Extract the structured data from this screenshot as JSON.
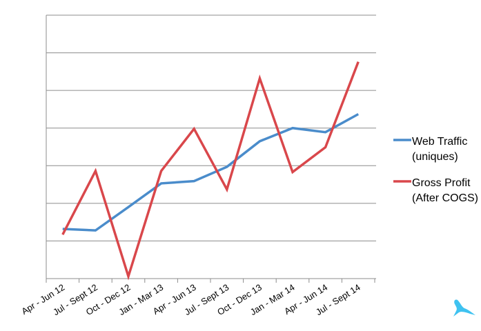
{
  "chart_data": {
    "type": "line",
    "title": "",
    "xlabel": "",
    "ylabel": "",
    "ylim": [
      0,
      7
    ],
    "grid": true,
    "legend_position": "right",
    "categories": [
      "Apr - Jun 12",
      "Jul - Sept 12",
      "Oct - Dec 12",
      "Jan - Mar 13",
      "Apr - Jun 13",
      "Jul - Sept 13",
      "Oct - Dec 13",
      "Jan - Mar 14",
      "Apr - Jun 14",
      "Jul - Sept 14"
    ],
    "series": [
      {
        "name": "Web Traffic (uniques)",
        "legend_lines": [
          "Web Traffic",
          "(uniques)"
        ],
        "color": "#4a8ccb",
        "values": [
          1.32,
          1.28,
          1.9,
          2.53,
          2.59,
          2.97,
          3.65,
          4.0,
          3.89,
          4.37
        ]
      },
      {
        "name": "Gross Profit (After COGS)",
        "legend_lines": [
          "Gross Profit",
          "(After COGS)"
        ],
        "color": "#d9474b",
        "values": [
          1.17,
          2.86,
          0.06,
          2.86,
          3.98,
          2.37,
          5.32,
          2.83,
          3.49,
          5.76
        ]
      }
    ]
  },
  "logo": {
    "icon": "bird-icon",
    "color": "#3fc2f0"
  }
}
